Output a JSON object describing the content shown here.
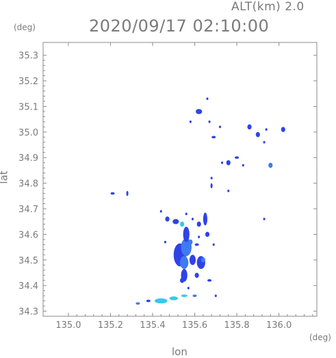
{
  "header": {
    "altitude_label": "ALT(km) 2.0",
    "timestamp": "2020/09/17 02:10:00"
  },
  "chart_data": {
    "type": "heatmap",
    "title": "2020/09/17 02:10:00",
    "subtitle": "ALT(km) 2.0",
    "xlabel": "lon",
    "ylabel": "lat",
    "x_unit": "(deg)",
    "y_unit": "(deg)",
    "xlim": [
      134.88,
      136.18
    ],
    "ylim": [
      34.28,
      35.35
    ],
    "x_ticks": [
      135.0,
      135.2,
      135.4,
      135.6,
      135.8,
      136.0
    ],
    "x_tick_labels": [
      "135.0",
      "135.2",
      "135.4",
      "135.6",
      "135.8",
      "136.0"
    ],
    "y_ticks": [
      34.3,
      34.4,
      34.5,
      34.6,
      34.7,
      34.8,
      34.9,
      35.0,
      35.1,
      35.2,
      35.3
    ],
    "y_tick_labels": [
      "34.3",
      "34.4",
      "34.5",
      "34.6",
      "34.7",
      "34.8",
      "34.9",
      "35.0",
      "35.1",
      "35.2",
      "35.3"
    ],
    "grid": false,
    "colors": {
      "low": "#2f43e8",
      "mid": "#3f7bf0",
      "high": "#38c8ec",
      "axis": "#8a8a8a",
      "text": "#7a7a7a"
    },
    "echoes": [
      {
        "lon": 135.53,
        "lat": 34.52,
        "w": 0.06,
        "h": 0.09,
        "level": "low"
      },
      {
        "lon": 135.56,
        "lat": 34.55,
        "w": 0.05,
        "h": 0.07,
        "level": "mid"
      },
      {
        "lon": 135.55,
        "lat": 34.49,
        "w": 0.04,
        "h": 0.05,
        "level": "mid"
      },
      {
        "lon": 135.59,
        "lat": 34.5,
        "w": 0.03,
        "h": 0.04,
        "level": "low"
      },
      {
        "lon": 135.63,
        "lat": 34.49,
        "w": 0.04,
        "h": 0.05,
        "level": "low"
      },
      {
        "lon": 135.64,
        "lat": 34.5,
        "w": 0.02,
        "h": 0.02,
        "level": "mid"
      },
      {
        "lon": 135.55,
        "lat": 34.44,
        "w": 0.03,
        "h": 0.05,
        "level": "low"
      },
      {
        "lon": 135.54,
        "lat": 34.42,
        "w": 0.02,
        "h": 0.02,
        "level": "low"
      },
      {
        "lon": 135.61,
        "lat": 34.44,
        "w": 0.02,
        "h": 0.02,
        "level": "low"
      },
      {
        "lon": 135.67,
        "lat": 34.42,
        "w": 0.02,
        "h": 0.01,
        "level": "low"
      },
      {
        "lon": 135.56,
        "lat": 34.6,
        "w": 0.03,
        "h": 0.06,
        "level": "low"
      },
      {
        "lon": 135.54,
        "lat": 34.64,
        "w": 0.02,
        "h": 0.02,
        "level": "high"
      },
      {
        "lon": 135.51,
        "lat": 34.65,
        "w": 0.03,
        "h": 0.02,
        "level": "low"
      },
      {
        "lon": 135.47,
        "lat": 34.66,
        "w": 0.02,
        "h": 0.02,
        "level": "low"
      },
      {
        "lon": 135.58,
        "lat": 34.57,
        "w": 0.02,
        "h": 0.02,
        "level": "mid"
      },
      {
        "lon": 135.61,
        "lat": 34.56,
        "w": 0.02,
        "h": 0.01,
        "level": "low"
      },
      {
        "lon": 135.65,
        "lat": 34.66,
        "w": 0.02,
        "h": 0.05,
        "level": "low"
      },
      {
        "lon": 135.62,
        "lat": 34.64,
        "w": 0.02,
        "h": 0.02,
        "level": "low"
      },
      {
        "lon": 135.66,
        "lat": 34.6,
        "w": 0.02,
        "h": 0.02,
        "level": "low"
      },
      {
        "lon": 135.59,
        "lat": 34.66,
        "w": 0.01,
        "h": 0.01,
        "level": "low"
      },
      {
        "lon": 135.56,
        "lat": 34.68,
        "w": 0.01,
        "h": 0.01,
        "level": "low"
      },
      {
        "lon": 135.44,
        "lat": 34.69,
        "w": 0.01,
        "h": 0.01,
        "level": "low"
      },
      {
        "lon": 135.62,
        "lat": 34.59,
        "w": 0.01,
        "h": 0.01,
        "level": "low"
      },
      {
        "lon": 135.69,
        "lat": 34.56,
        "w": 0.01,
        "h": 0.01,
        "level": "low"
      },
      {
        "lon": 135.46,
        "lat": 34.57,
        "w": 0.01,
        "h": 0.01,
        "level": "low"
      },
      {
        "lon": 135.57,
        "lat": 34.39,
        "w": 0.01,
        "h": 0.01,
        "level": "low"
      },
      {
        "lon": 135.7,
        "lat": 34.36,
        "w": 0.01,
        "h": 0.01,
        "level": "low"
      },
      {
        "lon": 135.33,
        "lat": 34.33,
        "w": 0.02,
        "h": 0.01,
        "level": "mid"
      },
      {
        "lon": 135.38,
        "lat": 34.34,
        "w": 0.02,
        "h": 0.01,
        "level": "low"
      },
      {
        "lon": 135.44,
        "lat": 34.34,
        "w": 0.06,
        "h": 0.02,
        "level": "high"
      },
      {
        "lon": 135.5,
        "lat": 34.35,
        "w": 0.04,
        "h": 0.015,
        "level": "high"
      },
      {
        "lon": 135.55,
        "lat": 34.36,
        "w": 0.03,
        "h": 0.01,
        "level": "high"
      },
      {
        "lon": 135.6,
        "lat": 34.36,
        "w": 0.02,
        "h": 0.01,
        "level": "mid"
      },
      {
        "lon": 135.21,
        "lat": 34.76,
        "w": 0.02,
        "h": 0.01,
        "level": "low"
      },
      {
        "lon": 135.28,
        "lat": 34.76,
        "w": 0.01,
        "h": 0.02,
        "level": "low"
      },
      {
        "lon": 135.68,
        "lat": 34.82,
        "w": 0.01,
        "h": 0.01,
        "level": "low"
      },
      {
        "lon": 135.68,
        "lat": 34.79,
        "w": 0.01,
        "h": 0.02,
        "level": "low"
      },
      {
        "lon": 135.76,
        "lat": 34.77,
        "w": 0.01,
        "h": 0.01,
        "level": "low"
      },
      {
        "lon": 135.73,
        "lat": 34.88,
        "w": 0.01,
        "h": 0.01,
        "level": "low"
      },
      {
        "lon": 135.76,
        "lat": 34.88,
        "w": 0.02,
        "h": 0.02,
        "level": "low"
      },
      {
        "lon": 135.8,
        "lat": 34.9,
        "w": 0.02,
        "h": 0.01,
        "level": "low"
      },
      {
        "lon": 135.83,
        "lat": 34.87,
        "w": 0.01,
        "h": 0.01,
        "level": "low"
      },
      {
        "lon": 135.96,
        "lat": 34.87,
        "w": 0.02,
        "h": 0.02,
        "level": "mid"
      },
      {
        "lon": 135.93,
        "lat": 34.66,
        "w": 0.01,
        "h": 0.01,
        "level": "low"
      },
      {
        "lon": 135.69,
        "lat": 34.98,
        "w": 0.02,
        "h": 0.01,
        "level": "low"
      },
      {
        "lon": 135.72,
        "lat": 35.02,
        "w": 0.01,
        "h": 0.01,
        "level": "low"
      },
      {
        "lon": 135.67,
        "lat": 35.04,
        "w": 0.01,
        "h": 0.01,
        "level": "low"
      },
      {
        "lon": 135.62,
        "lat": 35.08,
        "w": 0.03,
        "h": 0.02,
        "level": "low"
      },
      {
        "lon": 135.66,
        "lat": 35.13,
        "w": 0.01,
        "h": 0.01,
        "level": "low"
      },
      {
        "lon": 135.58,
        "lat": 35.04,
        "w": 0.01,
        "h": 0.01,
        "level": "low"
      },
      {
        "lon": 135.86,
        "lat": 35.02,
        "w": 0.02,
        "h": 0.02,
        "level": "low"
      },
      {
        "lon": 135.9,
        "lat": 34.99,
        "w": 0.02,
        "h": 0.02,
        "level": "low"
      },
      {
        "lon": 135.93,
        "lat": 34.96,
        "w": 0.01,
        "h": 0.01,
        "level": "low"
      },
      {
        "lon": 135.94,
        "lat": 35.01,
        "w": 0.01,
        "h": 0.01,
        "level": "low"
      },
      {
        "lon": 136.02,
        "lat": 35.01,
        "w": 0.02,
        "h": 0.02,
        "level": "low"
      }
    ]
  }
}
